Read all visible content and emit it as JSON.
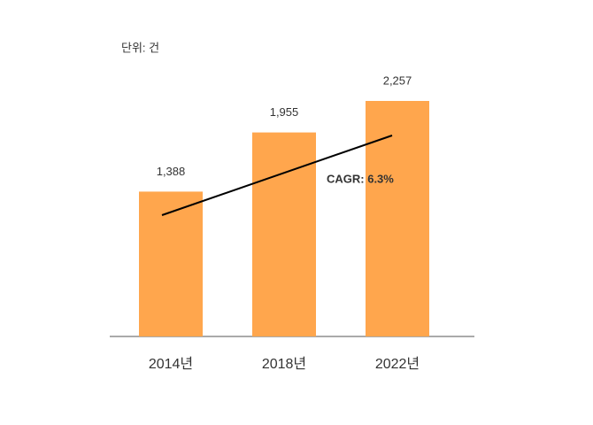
{
  "chart_data": {
    "type": "bar",
    "unit_label": "단위: 건",
    "annotation": "CAGR: 6.3%",
    "categories": [
      "2014년",
      "2018년",
      "2022년"
    ],
    "values": [
      1388,
      1955,
      2257
    ],
    "value_labels": [
      "1,388",
      "1,955",
      "2,257"
    ],
    "color": "#ffa64d"
  }
}
